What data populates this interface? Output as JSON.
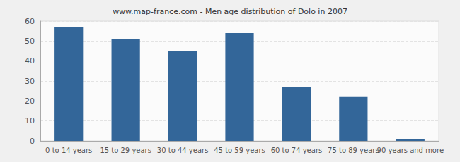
{
  "chart_data": {
    "type": "bar",
    "title": "www.map-france.com - Men age distribution of Dolo in 2007",
    "categories": [
      "0 to 14 years",
      "15 to 29 years",
      "30 to 44 years",
      "45 to 59 years",
      "60 to 74 years",
      "75 to 89 years",
      "90 years and more"
    ],
    "values": [
      57,
      51,
      45,
      54,
      27,
      22,
      1
    ],
    "color": "#336699",
    "ylim": [
      0,
      60
    ],
    "yticks": [
      0,
      10,
      20,
      30,
      40,
      50,
      60
    ],
    "grid": true
  }
}
